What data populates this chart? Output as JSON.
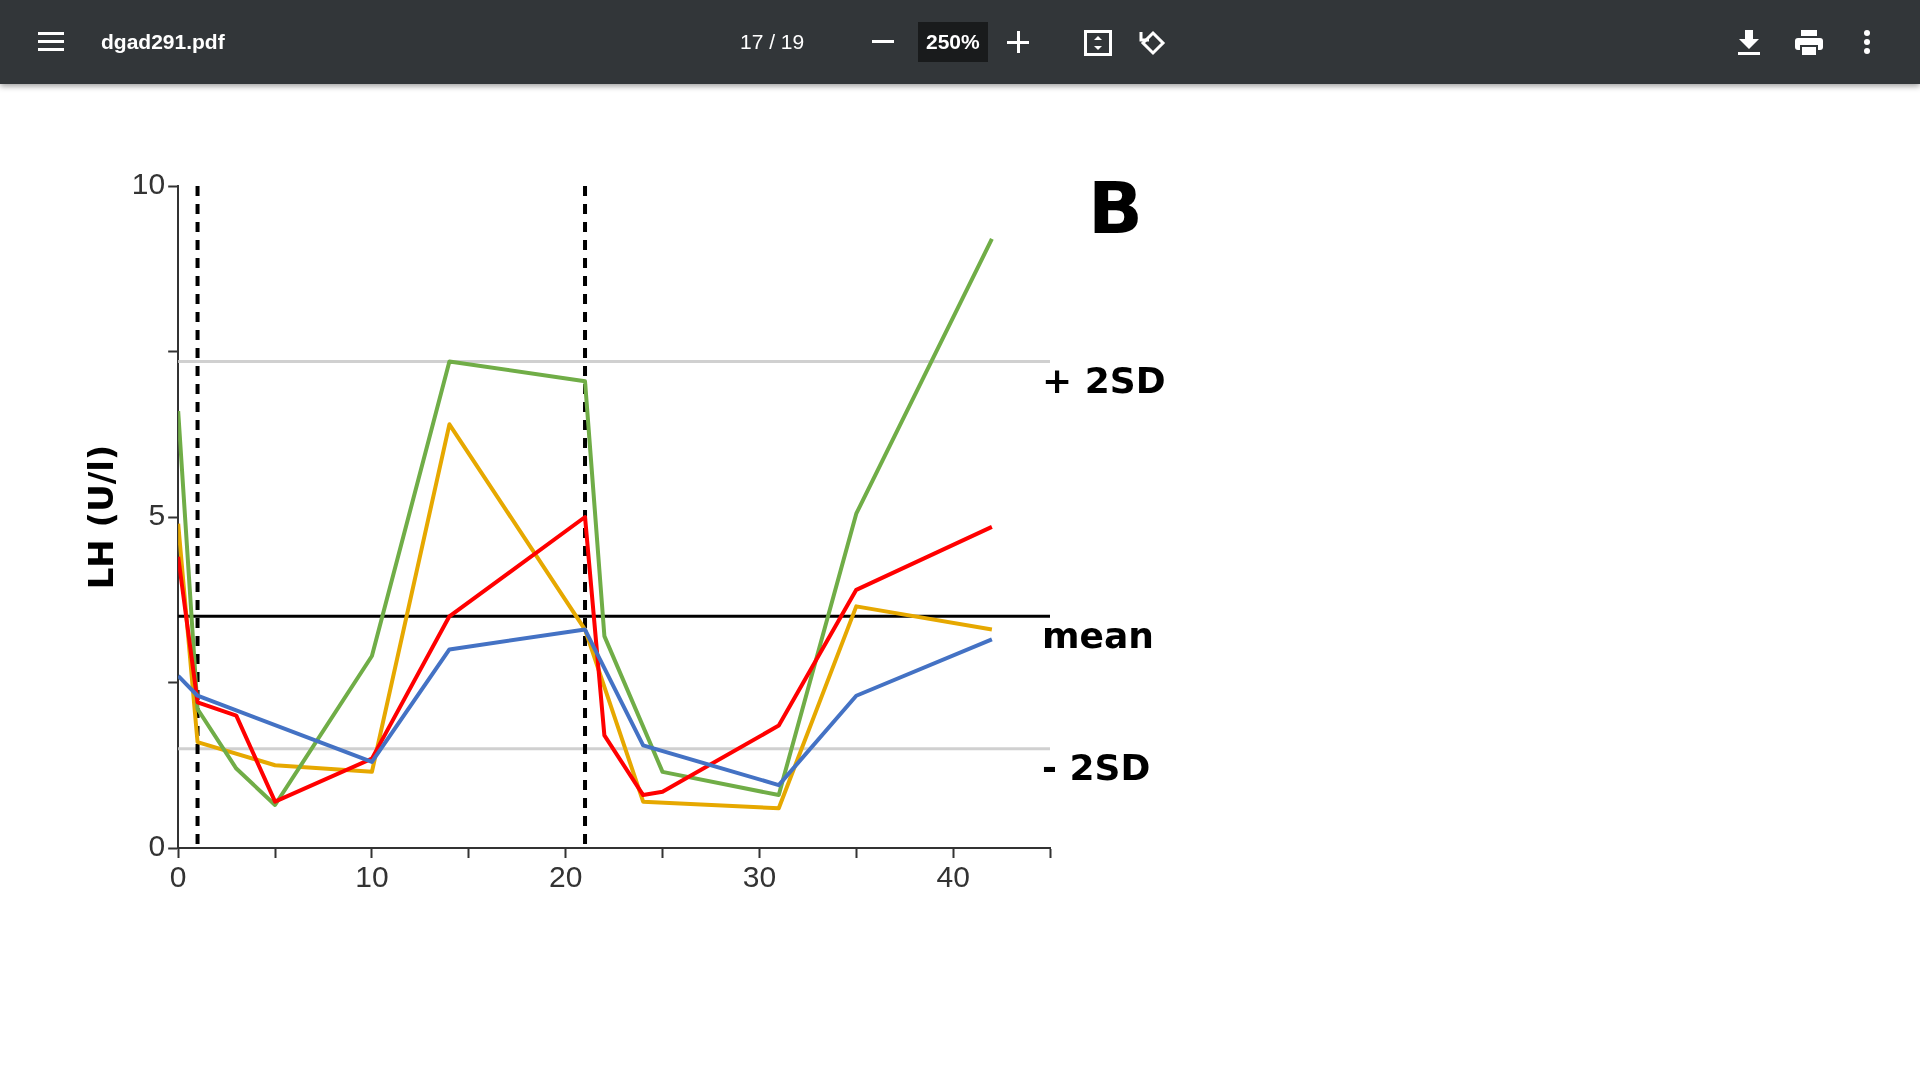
{
  "chart_data": {
    "type": "line",
    "title": "B",
    "ylabel": "LH (U/l)",
    "xlim": [
      0,
      45
    ],
    "xticks": [
      0,
      {
        "value": 5,
        "label": null
      },
      10,
      {
        "value": 15,
        "label": null
      },
      20,
      {
        "value": 25,
        "label": null
      },
      30,
      {
        "value": 35,
        "label": null
      },
      40,
      {
        "value": 45,
        "label": null
      }
    ],
    "ylim": [
      0,
      10
    ],
    "yticks": [
      0,
      {
        "value": 2.5,
        "label": null
      },
      5,
      {
        "value": 7.5,
        "label": null
      },
      10
    ],
    "grid": false,
    "legend": false,
    "marker": "none",
    "line_style": "solid",
    "series": [
      {
        "color": "#4472c4",
        "x": [
          0,
          1,
          10,
          14,
          21,
          24,
          31,
          35,
          42
        ],
        "values": [
          2.6,
          2.3,
          1.3,
          3.0,
          3.3,
          1.55,
          0.95,
          2.3,
          3.15
        ]
      },
      {
        "color": "#ff0000",
        "x": [
          0,
          1,
          3,
          5,
          10,
          14,
          21,
          22,
          24,
          25,
          31,
          35,
          42
        ],
        "values": [
          4.4,
          2.2,
          2.0,
          0.7,
          1.35,
          3.5,
          5.0,
          1.7,
          0.8,
          0.85,
          1.85,
          3.9,
          4.85
        ]
      },
      {
        "color": "#70ad47",
        "x": [
          0,
          1,
          3,
          5,
          10,
          14,
          21,
          22,
          25,
          31,
          35,
          42
        ],
        "values": [
          6.6,
          2.1,
          1.2,
          0.65,
          2.9,
          7.35,
          7.05,
          3.2,
          1.15,
          0.8,
          5.05,
          9.2
        ]
      },
      {
        "color": "#e6a800",
        "x": [
          0,
          1,
          5,
          10,
          14,
          21,
          24,
          31,
          35,
          42
        ],
        "values": [
          4.9,
          1.6,
          1.25,
          1.15,
          6.4,
          3.3,
          0.7,
          0.6,
          3.65,
          3.3
        ]
      }
    ],
    "ref_lines": [
      {
        "axis": "y",
        "value": 7.35,
        "label": "+ 2SD",
        "color": "#d0d0d0",
        "line_style": "solid"
      },
      {
        "axis": "y",
        "value": 3.5,
        "label": "mean",
        "color": "#000000",
        "line_style": "solid"
      },
      {
        "axis": "y",
        "value": 1.5,
        "label": "- 2SD",
        "color": "#d0d0d0",
        "line_style": "solid"
      },
      {
        "axis": "x",
        "value": 1,
        "color": "#000000",
        "line_style": "dashed"
      },
      {
        "axis": "x",
        "value": 21,
        "color": "#000000",
        "line_style": "dashed"
      }
    ],
    "annotations": [
      "dgad291.pdf",
      "17 / 19",
      "250%"
    ]
  }
}
